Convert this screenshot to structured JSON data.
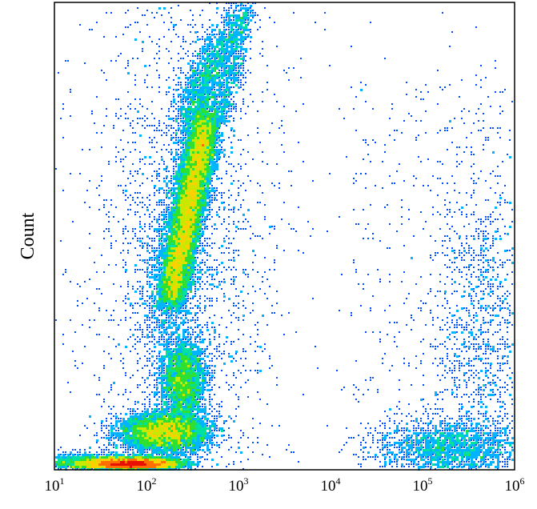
{
  "chart_data": {
    "type": "scatter",
    "title": "",
    "xlabel": "",
    "ylabel": "Count",
    "x_scale": "log",
    "xlim": [
      10,
      1000000
    ],
    "x_ticks": [
      {
        "value": 10,
        "base": "10",
        "exp": "1"
      },
      {
        "value": 100,
        "base": "10",
        "exp": "2"
      },
      {
        "value": 1000,
        "base": "10",
        "exp": "3"
      },
      {
        "value": 10000,
        "base": "10",
        "exp": "4"
      },
      {
        "value": 100000,
        "base": "10",
        "exp": "5"
      },
      {
        "value": 1000000,
        "base": "10",
        "exp": "6"
      }
    ],
    "y_ticks": [],
    "grid": false,
    "legend": "none",
    "colormap": [
      "#0000a8",
      "#0050ff",
      "#00b4ff",
      "#00e0a0",
      "#30e030",
      "#c8e800",
      "#ffd000",
      "#ff7000",
      "#e81000"
    ],
    "populations": [
      {
        "name": "diagonal-stream",
        "x_center": 230,
        "y_fraction": 0.56,
        "density": "high"
      },
      {
        "name": "mid-cluster",
        "x_center": 200,
        "y_fraction": 0.18,
        "density": "medium"
      },
      {
        "name": "low-cluster",
        "x_center": 180,
        "y_fraction": 0.08,
        "density": "high"
      },
      {
        "name": "baseline-peak",
        "x_center": 75,
        "y_fraction": 0.01,
        "density": "very-high"
      },
      {
        "name": "right-tail",
        "x_center": 200000,
        "y_fraction": 0.1,
        "density": "low"
      }
    ]
  }
}
